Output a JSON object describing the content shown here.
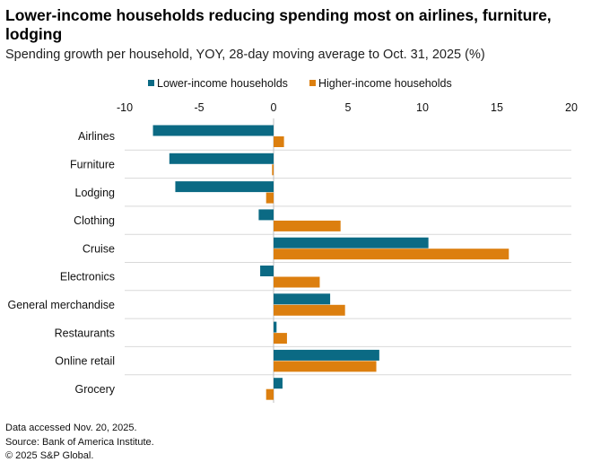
{
  "chart_data": {
    "type": "bar",
    "orientation": "horizontal",
    "title": "Lower-income households reducing spending most on airlines, furniture, lodging",
    "subtitle": "Spending growth per household, YOY, 28-day moving average to Oct. 31, 2025 (%)",
    "categories": [
      "Airlines",
      "Furniture",
      "Lodging",
      "Clothing",
      "Cruise",
      "Electronics",
      "General merchandise",
      "Restaurants",
      "Online retail",
      "Grocery"
    ],
    "series": [
      {
        "name": "Lower-income households",
        "color": "#0b6a84",
        "values": [
          -8.1,
          -7.0,
          -6.6,
          -1.0,
          10.4,
          -0.9,
          3.8,
          0.2,
          7.1,
          0.6
        ]
      },
      {
        "name": "Higher-income households",
        "color": "#dc7f0f",
        "values": [
          0.7,
          -0.1,
          -0.5,
          4.5,
          15.8,
          3.1,
          4.8,
          0.9,
          6.9,
          -0.5
        ]
      }
    ],
    "xlim": [
      -10,
      20
    ],
    "xticks": [
      -10,
      -5,
      0,
      5,
      10,
      15,
      20
    ],
    "legend_position": "top",
    "grid": "horizontal separators between categories"
  },
  "footer": {
    "accessed": "Data accessed Nov. 20, 2025.",
    "source": "Source: Bank of America Institute.",
    "copyright": "© 2025 S&P Global."
  }
}
